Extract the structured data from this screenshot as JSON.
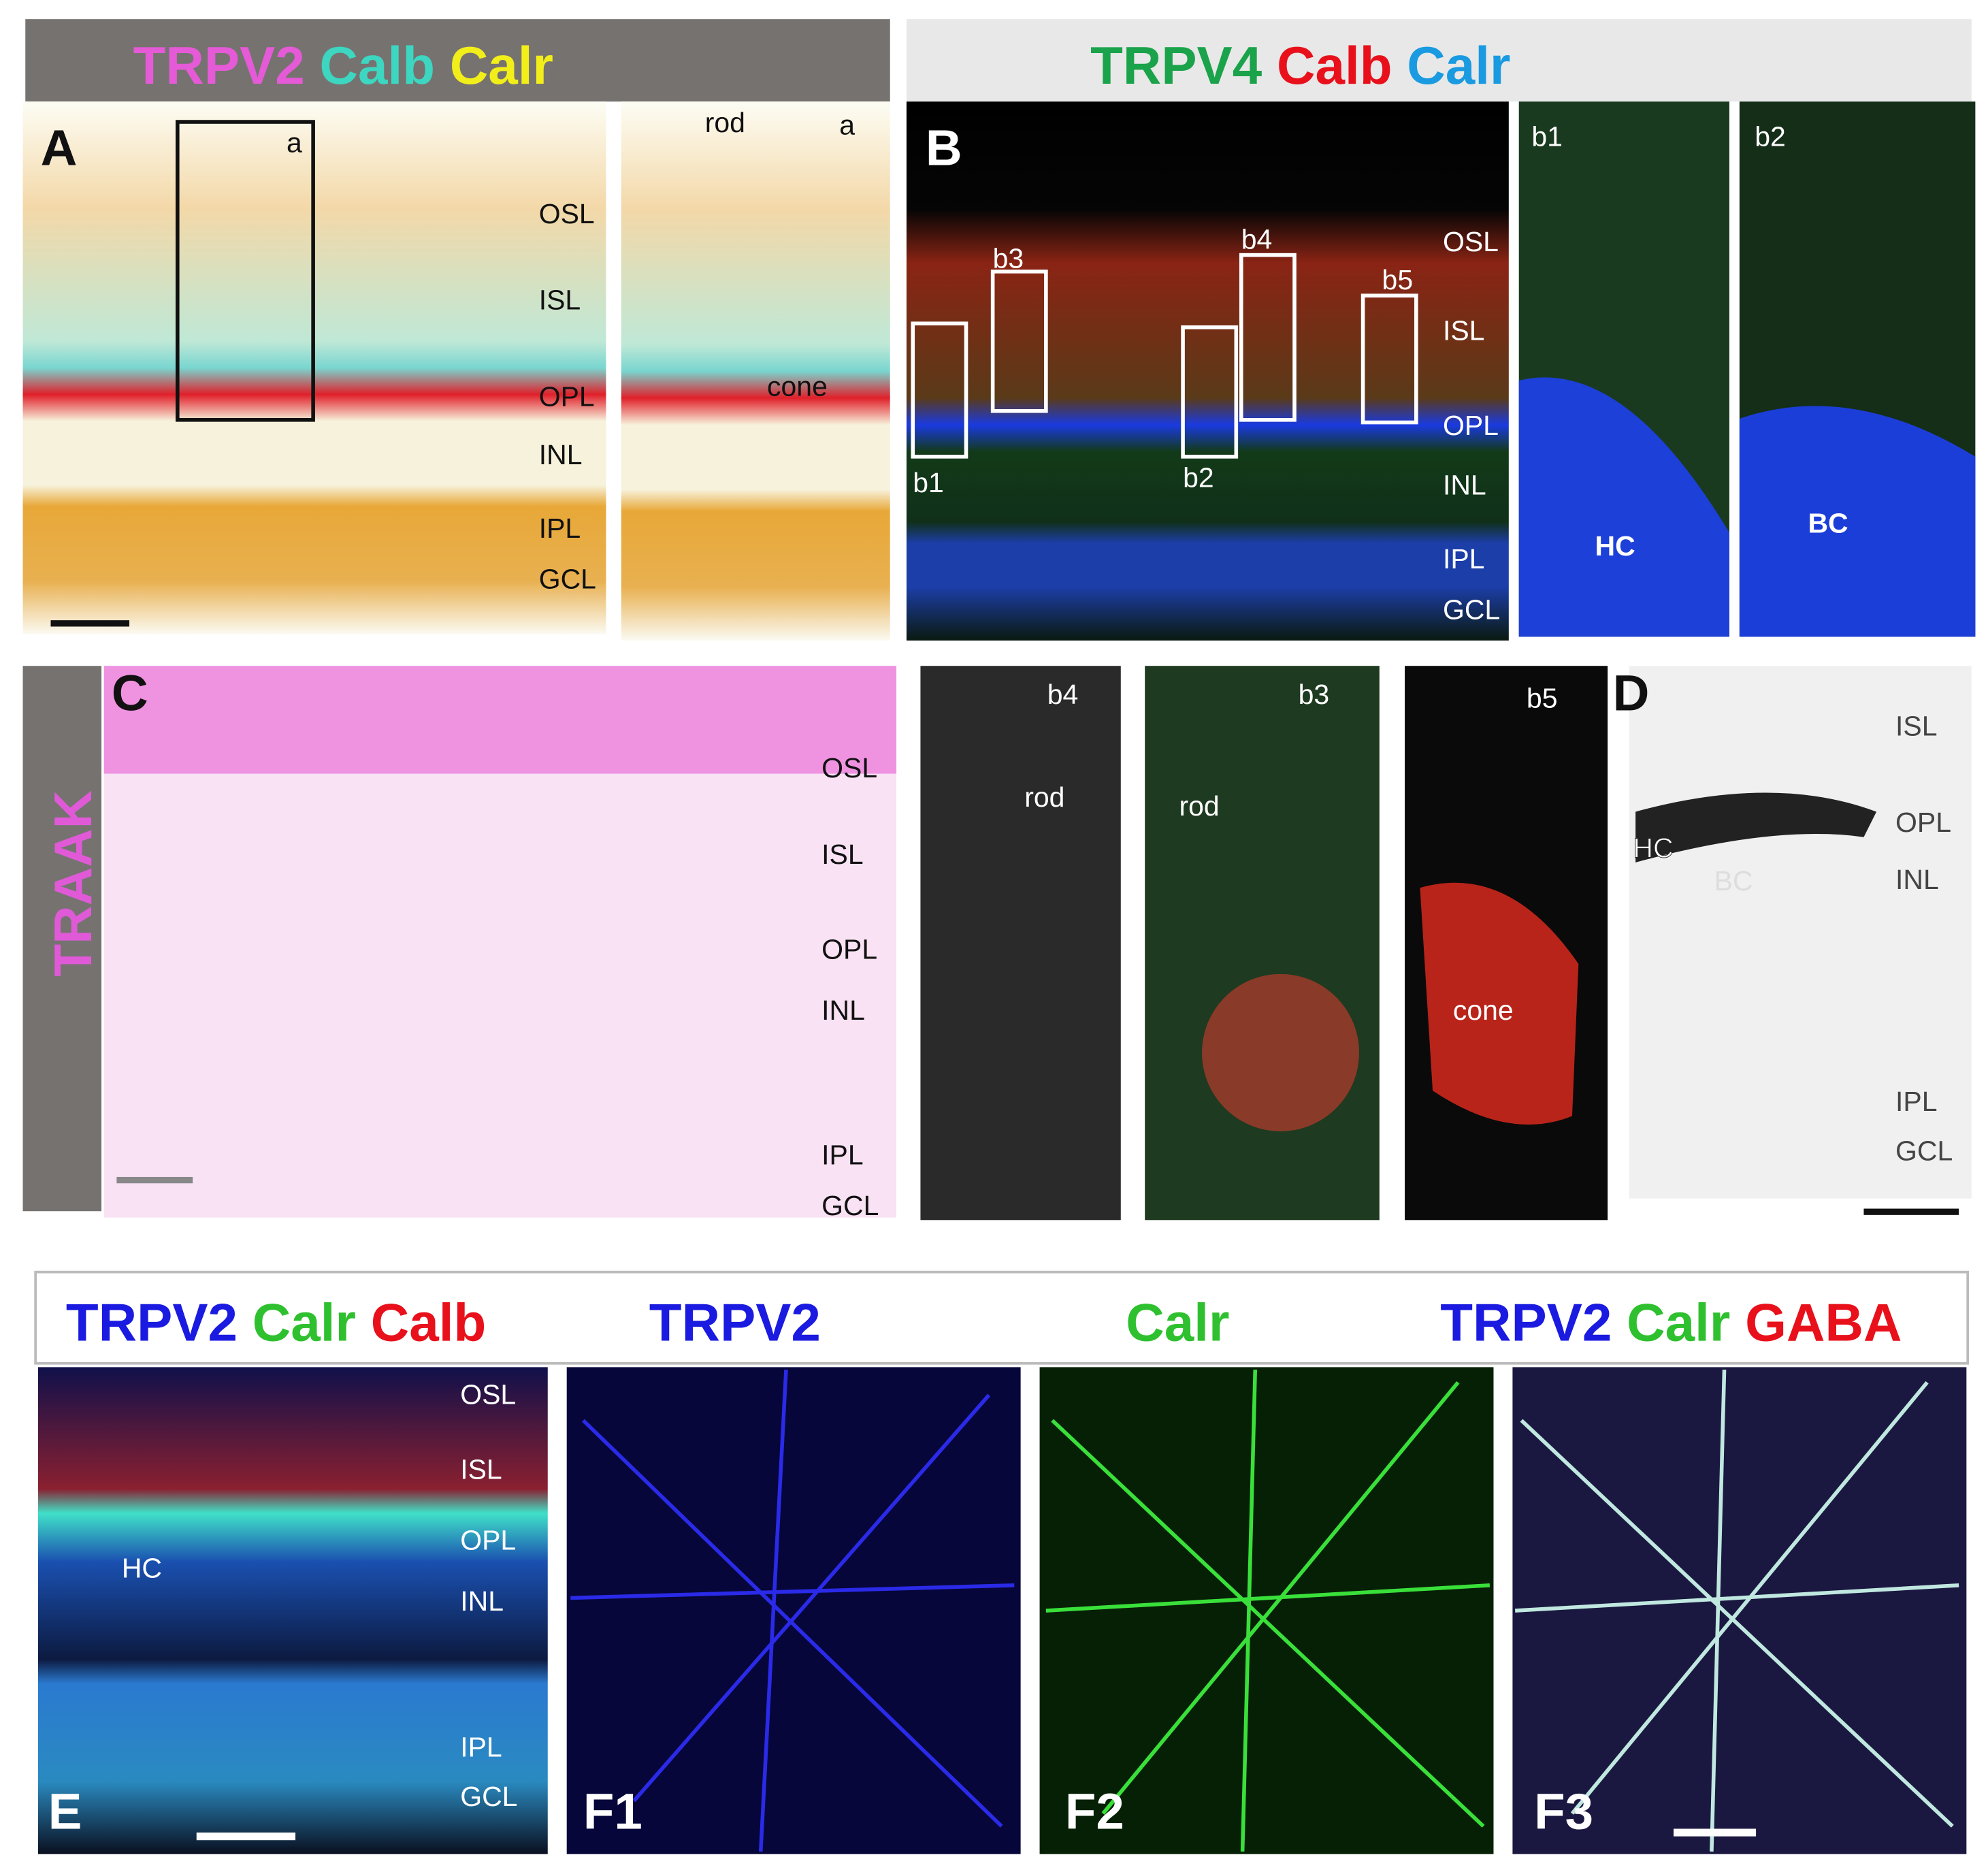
{
  "panel_a": {
    "title": [
      "TRPV2",
      "Calb",
      "Calr"
    ],
    "label": "A",
    "box_label": "a",
    "layers": [
      "OSL",
      "ISL",
      "OPL",
      "INL",
      "IPL",
      "GCL"
    ]
  },
  "inset_a": {
    "rod": "rod",
    "label": "a",
    "cone": "cone"
  },
  "panel_b": {
    "title": [
      "TRPV4",
      "Calb",
      "Calr"
    ],
    "label": "B",
    "boxes": [
      "b1",
      "b2",
      "b3",
      "b4",
      "b5"
    ],
    "layers": [
      "OSL",
      "ISL",
      "OPL",
      "INL",
      "IPL",
      "GCL"
    ]
  },
  "inset_b1": {
    "label": "b1",
    "cell": "HC"
  },
  "inset_b2": {
    "label": "b2",
    "cell": "BC"
  },
  "panel_c": {
    "title": "TRAAK",
    "label": "C",
    "layers": [
      "OSL",
      "ISL",
      "OPL",
      "INL",
      "IPL",
      "GCL"
    ]
  },
  "inset_b4": {
    "label": "b4",
    "cell": "rod"
  },
  "inset_b3": {
    "label": "b3",
    "cell": "rod"
  },
  "inset_b5": {
    "label": "b5",
    "cell": "cone"
  },
  "panel_d": {
    "label": "D",
    "layers": [
      "ISL",
      "OPL",
      "INL",
      "IPL",
      "GCL"
    ],
    "cells": [
      "HC",
      "BC"
    ]
  },
  "panel_e": {
    "title": [
      "TRPV2",
      "Calr",
      "Calb"
    ],
    "label": "E",
    "layers": [
      "OSL",
      "ISL",
      "OPL",
      "INL",
      "IPL",
      "GCL"
    ],
    "cell": "HC"
  },
  "panel_f1": {
    "title": "TRPV2",
    "label": "F1"
  },
  "panel_f2": {
    "title": "Calr",
    "label": "F2"
  },
  "panel_f3": {
    "title": [
      "TRPV2",
      "Calr",
      "GABA"
    ],
    "label": "F3"
  }
}
